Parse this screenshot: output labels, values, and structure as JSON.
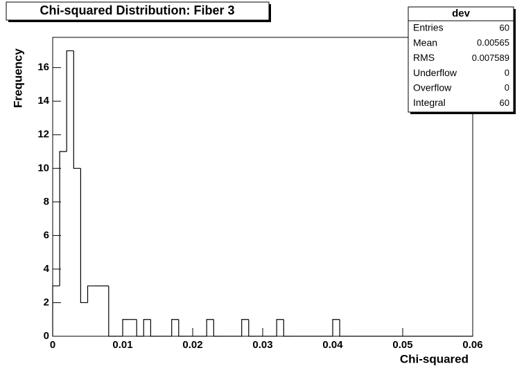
{
  "chart_data": {
    "type": "histogram",
    "title": "Chi-squared Distribution: Fiber 3",
    "xlabel": "Chi-squared",
    "ylabel": "Frequency",
    "bins": [
      0,
      0.001,
      0.002,
      0.003,
      0.004,
      0.005,
      0.006,
      0.007,
      0.008,
      0.009,
      0.01,
      0.011,
      0.012,
      0.013,
      0.014,
      0.015,
      0.016,
      0.017,
      0.018,
      0.019,
      0.02,
      0.021,
      0.022,
      0.023,
      0.024,
      0.025,
      0.026,
      0.027,
      0.028,
      0.029,
      0.03,
      0.031,
      0.032,
      0.033,
      0.034,
      0.035,
      0.036,
      0.037,
      0.038,
      0.039,
      0.04,
      0.041,
      0.042,
      0.043,
      0.044,
      0.045,
      0.046,
      0.047,
      0.048,
      0.049,
      0.05,
      0.051,
      0.052,
      0.053,
      0.054,
      0.055,
      0.056,
      0.057,
      0.058,
      0.059,
      0.06
    ],
    "values": [
      3,
      11,
      17,
      10,
      2,
      3,
      3,
      3,
      0,
      0,
      1,
      1,
      0,
      1,
      0,
      0,
      0,
      1,
      0,
      0,
      0,
      0,
      1,
      0,
      0,
      0,
      0,
      1,
      0,
      0,
      0,
      0,
      1,
      0,
      0,
      0,
      0,
      0,
      0,
      0,
      1,
      0,
      0,
      0,
      0,
      0,
      0,
      0,
      0,
      0,
      0,
      0,
      0,
      0,
      0,
      0,
      0,
      0,
      0,
      0
    ],
    "color": "#000000",
    "xlim": [
      0,
      0.06
    ],
    "xticks": [
      0,
      0.01,
      0.02,
      0.03,
      0.04,
      0.05,
      0.06
    ],
    "ylim": [
      0,
      17.8
    ],
    "yticks": [
      0,
      2,
      4,
      6,
      8,
      10,
      12,
      14,
      16
    ],
    "stats": {
      "title": "dev",
      "rows": [
        {
          "label": "Entries",
          "value": 60
        },
        {
          "label": "Mean",
          "value": 0.00565
        },
        {
          "label": "RMS",
          "value": 0.007589
        },
        {
          "label": "Underflow",
          "value": 0
        },
        {
          "label": "Overflow",
          "value": 0
        },
        {
          "label": "Integral",
          "value": 60
        }
      ]
    }
  }
}
